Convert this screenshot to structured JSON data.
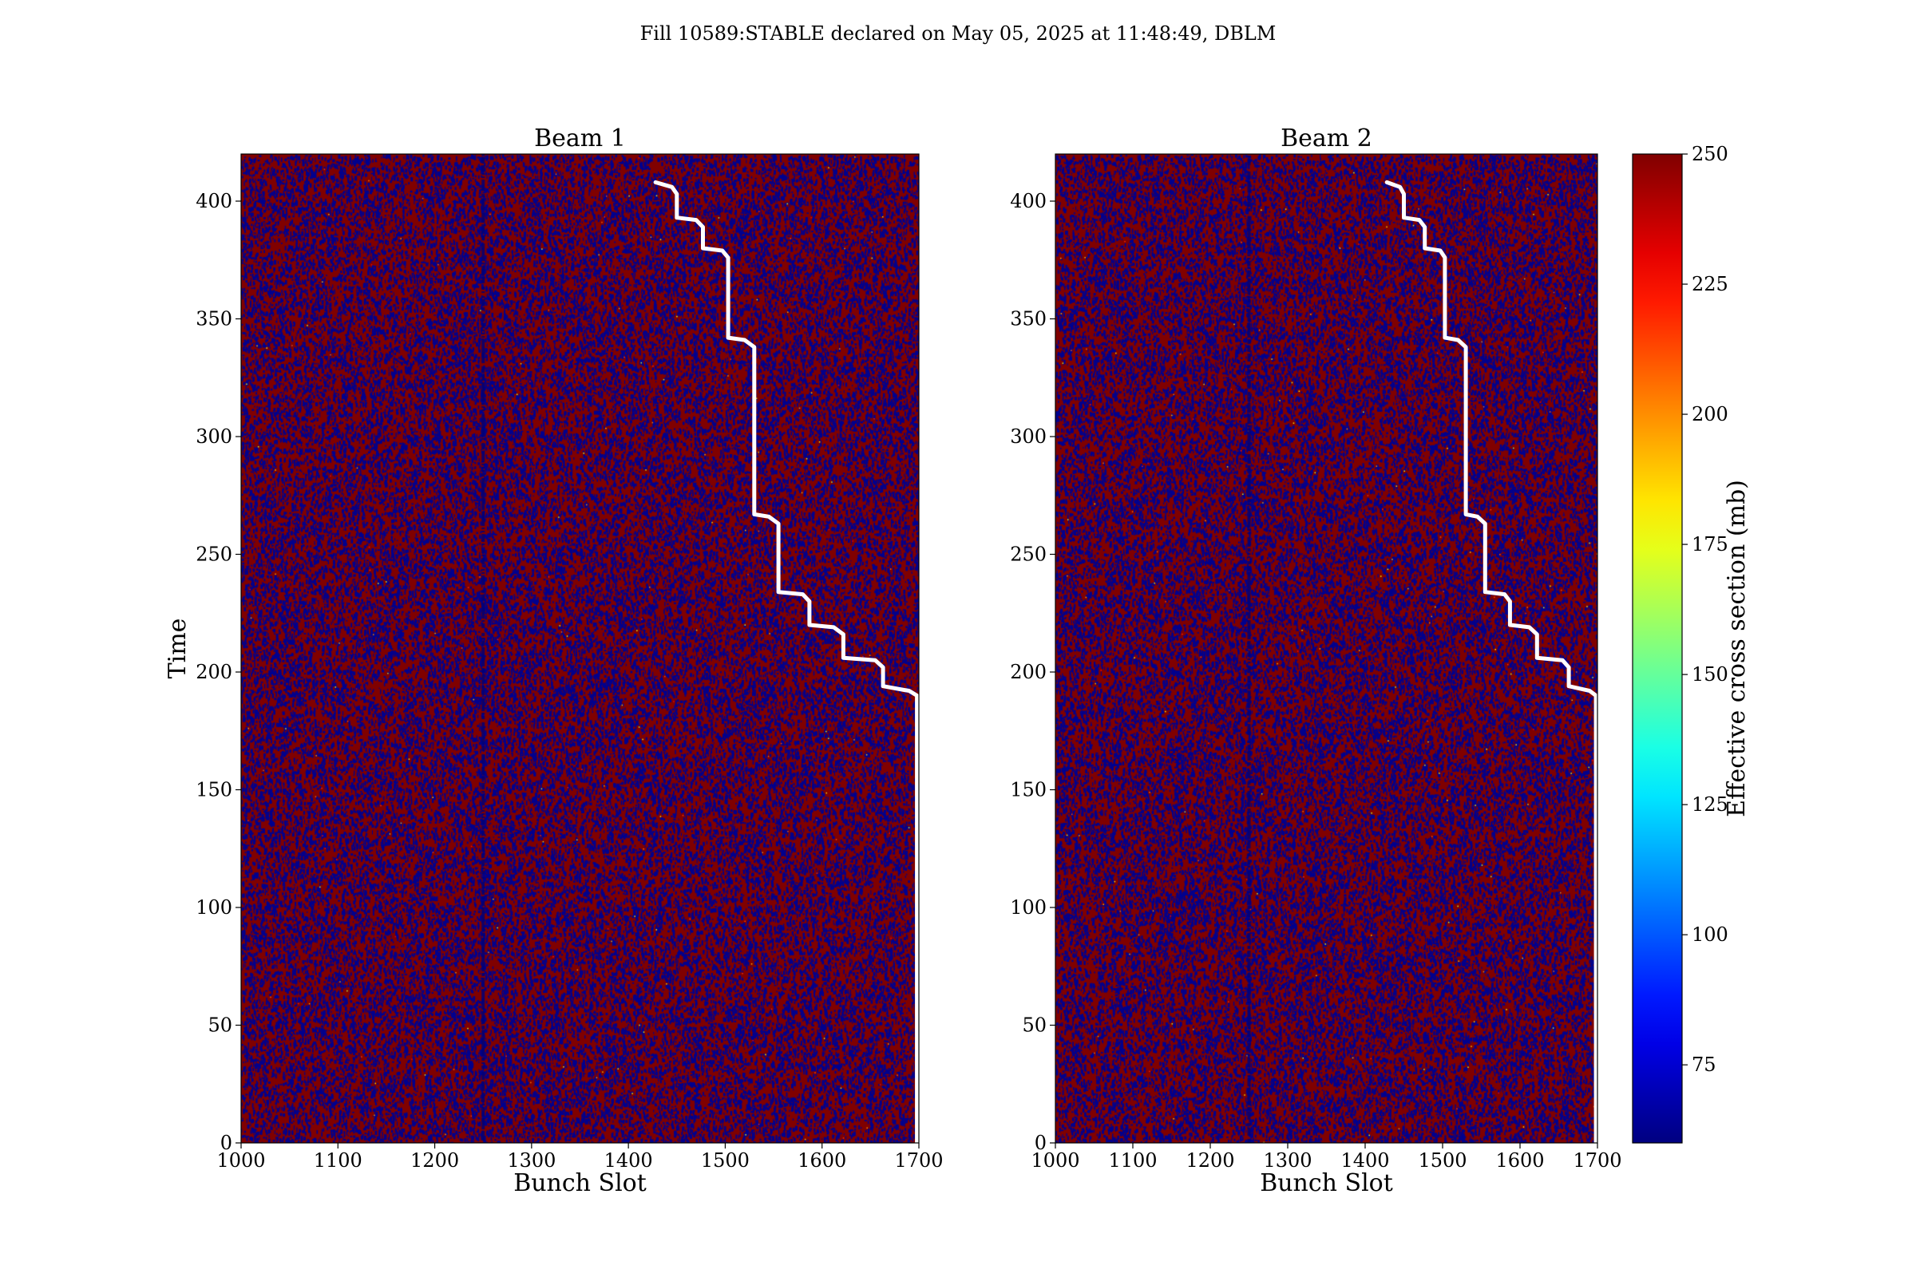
{
  "figure": {
    "suptitle": "Fill 10589:STABLE declared on May 05, 2025 at 11:48:49, DBLM"
  },
  "colorbar": {
    "label": "Effective cross section (mb)",
    "ticks": [
      75,
      100,
      125,
      150,
      175,
      200,
      225,
      250
    ],
    "range": [
      60,
      250
    ],
    "colormap": "jet"
  },
  "colors": {
    "low": "#00008f",
    "high": "#800000",
    "step_line": "#ffffff"
  },
  "chart_data": [
    {
      "type": "heatmap",
      "title": "Beam 1",
      "xlabel": "Bunch Slot",
      "ylabel": "Time",
      "xlim": [
        1000,
        1700
      ],
      "ylim": [
        0,
        420
      ],
      "xticks": [
        1000,
        1100,
        1200,
        1300,
        1400,
        1500,
        1600,
        1700
      ],
      "yticks": [
        0,
        50,
        100,
        150,
        200,
        250,
        300,
        350,
        400
      ],
      "values_description_range": [
        60,
        250
      ],
      "dark_column_slot": 1250,
      "step_line": {
        "x": [
          1428,
          1445,
          1450,
          1450,
          1470,
          1477,
          1477,
          1497,
          1503,
          1503,
          1520,
          1530,
          1530,
          1545,
          1555,
          1555,
          1580,
          1587,
          1587,
          1612,
          1622,
          1622,
          1655,
          1663,
          1663,
          1690,
          1698,
          1698
        ],
        "y": [
          408,
          406,
          403,
          393,
          392,
          389,
          380,
          379,
          376,
          342,
          341,
          338,
          267,
          266,
          263,
          234,
          233,
          230,
          220,
          219,
          216,
          206,
          205,
          202,
          194,
          192,
          190,
          0
        ]
      }
    },
    {
      "type": "heatmap",
      "title": "Beam 2",
      "xlabel": "Bunch Slot",
      "ylabel": "",
      "xlim": [
        1000,
        1700
      ],
      "ylim": [
        0,
        420
      ],
      "xticks": [
        1000,
        1100,
        1200,
        1300,
        1400,
        1500,
        1600,
        1700
      ],
      "yticks": [
        0,
        50,
        100,
        150,
        200,
        250,
        300,
        350,
        400
      ],
      "values_description_range": [
        60,
        250
      ],
      "dark_column_slot": 1250,
      "step_line": {
        "x": [
          1428,
          1445,
          1450,
          1450,
          1470,
          1477,
          1477,
          1497,
          1503,
          1503,
          1520,
          1530,
          1530,
          1545,
          1555,
          1555,
          1580,
          1587,
          1587,
          1612,
          1622,
          1622,
          1655,
          1663,
          1663,
          1690,
          1698,
          1698
        ],
        "y": [
          408,
          406,
          403,
          393,
          392,
          389,
          380,
          379,
          376,
          342,
          341,
          338,
          267,
          266,
          263,
          234,
          233,
          230,
          220,
          219,
          216,
          206,
          205,
          202,
          194,
          192,
          190,
          0
        ]
      }
    }
  ]
}
